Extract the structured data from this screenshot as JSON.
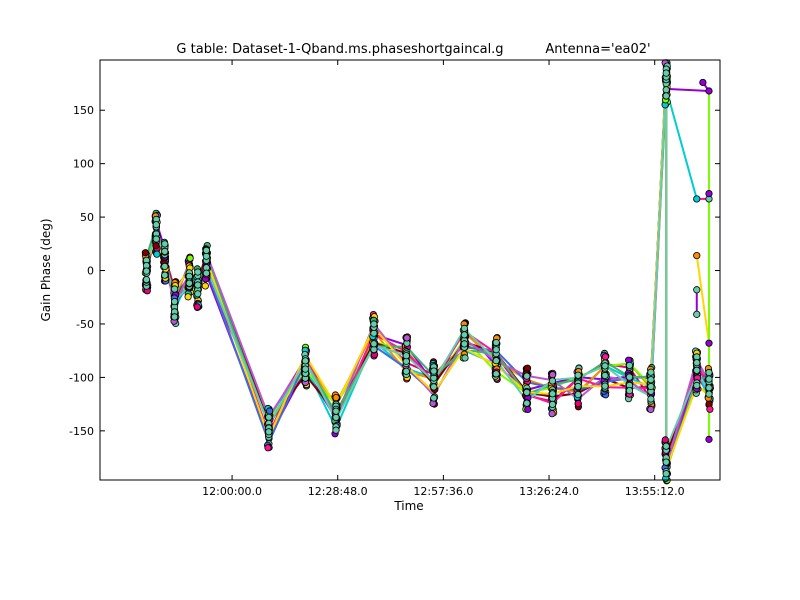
{
  "chart_data": {
    "type": "scatter",
    "title": "G table: Dataset-1-Qband.ms.phaseshortgaincal.g",
    "subtitle": "Antenna='ea02'",
    "xlabel": "Time",
    "ylabel": "Gain Phase (deg)",
    "xlim_seconds_of_day": [
      41040,
      51180
    ],
    "ylim": [
      -196,
      197
    ],
    "x_ticks": [
      {
        "seconds": 43200,
        "label": "12:00:00.0"
      },
      {
        "seconds": 44928,
        "label": "12:28:48.0"
      },
      {
        "seconds": 46656,
        "label": "12:57:36.0"
      },
      {
        "seconds": 48384,
        "label": "13:26:24.0"
      },
      {
        "seconds": 50112,
        "label": "13:55:12.0"
      }
    ],
    "y_ticks": [
      -150,
      -100,
      -50,
      0,
      50,
      100,
      150
    ],
    "grid": false,
    "legend": "none",
    "point_style": "filled circles with black edge, joined by colored lines",
    "series_colors": [
      "#e6007e",
      "#9400d3",
      "#00ced1",
      "#ff8c00",
      "#7cfc00",
      "#800000",
      "#4169e1",
      "#ff1493",
      "#ba55d3",
      "#3cb371",
      "#ffd700",
      "#66cdaa"
    ],
    "scans": [
      {
        "x": 41800,
        "center": 0
      },
      {
        "x": 41960,
        "center": 35
      },
      {
        "x": 42100,
        "center": 10
      },
      {
        "x": 42260,
        "center": -30
      },
      {
        "x": 42500,
        "center": -5
      },
      {
        "x": 42640,
        "center": -15
      },
      {
        "x": 42780,
        "center": 5
      },
      {
        "x": 43800,
        "center": -148
      },
      {
        "x": 44400,
        "center": -88
      },
      {
        "x": 44900,
        "center": -135
      },
      {
        "x": 45520,
        "center": -60
      },
      {
        "x": 46050,
        "center": -82
      },
      {
        "x": 46500,
        "center": -105
      },
      {
        "x": 47000,
        "center": -62
      },
      {
        "x": 47520,
        "center": -82
      },
      {
        "x": 48020,
        "center": -110
      },
      {
        "x": 48440,
        "center": -115
      },
      {
        "x": 48860,
        "center": -108
      },
      {
        "x": 49300,
        "center": -97
      },
      {
        "x": 49700,
        "center": -100
      },
      {
        "x": 50050,
        "center": -110
      },
      {
        "x": 50300,
        "center": 175
      },
      {
        "x": 50300,
        "center": -178
      },
      {
        "x": 50800,
        "center": -95
      },
      {
        "x": 51000,
        "center": -110
      }
    ],
    "outliers": [
      {
        "x": 50900,
        "y": 176
      },
      {
        "x": 51000,
        "y": 168
      },
      {
        "x": 50800,
        "y": 67
      },
      {
        "x": 51000,
        "y": 67
      },
      {
        "x": 51000,
        "y": 72
      },
      {
        "x": 50800,
        "y": 14
      },
      {
        "x": 50800,
        "y": -18
      },
      {
        "x": 50800,
        "y": -41
      },
      {
        "x": 51000,
        "y": -68
      },
      {
        "x": 51000,
        "y": -158
      }
    ]
  }
}
